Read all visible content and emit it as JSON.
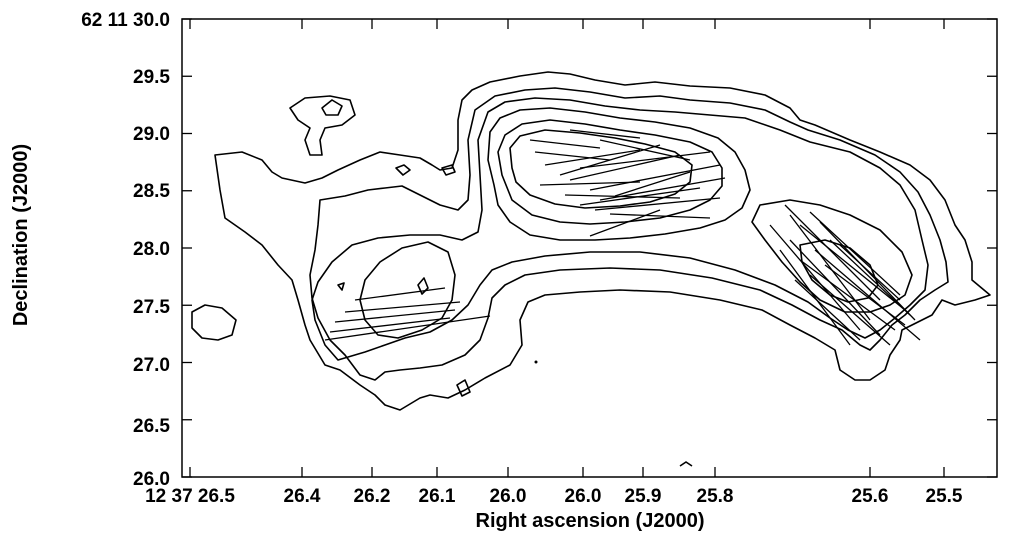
{
  "chart_data": {
    "type": "contour",
    "xlabel": "Right ascension (J2000)",
    "ylabel": "Declination (J2000)",
    "x_ticks": [
      "12 37 26.5",
      "26.4",
      "26.2",
      "26.1",
      "26.0",
      "26.0",
      "25.9",
      "25.8",
      "25.6",
      "25.5"
    ],
    "y_ticks": [
      "26.0",
      "26.5",
      "27.0",
      "27.5",
      "28.0",
      "28.5",
      "29.0",
      "29.5",
      "62 11 30.0"
    ],
    "ylim": [
      26.0,
      30.0
    ],
    "grid": false,
    "legend": "none",
    "contour_levels": 6,
    "polarization_regions": [
      "north-central knot",
      "eastern knot",
      "south-western lobe"
    ]
  }
}
